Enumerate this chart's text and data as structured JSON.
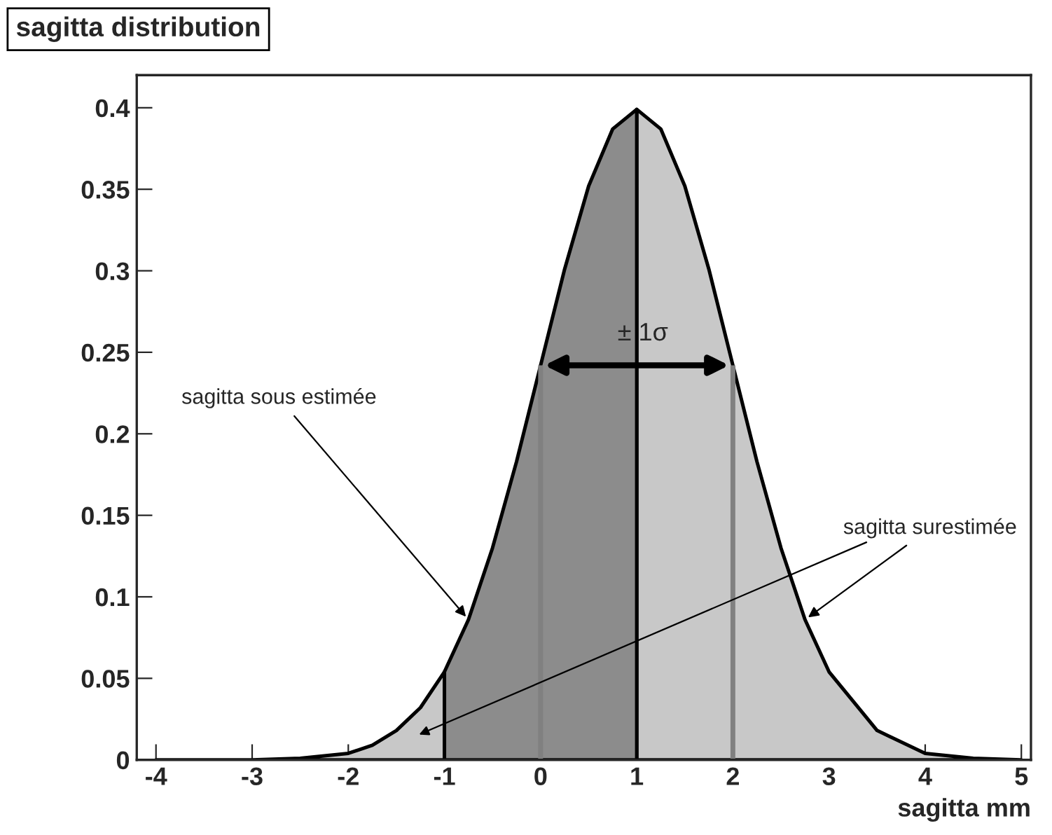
{
  "chart_data": {
    "type": "area",
    "title": "sagitta distribution",
    "xlabel": "sagitta mm",
    "x": [
      -4,
      -3.5,
      -3,
      -2.5,
      -2,
      -1.75,
      -1.5,
      -1.25,
      -1,
      -0.75,
      -0.5,
      -0.25,
      0,
      0.25,
      0.5,
      0.75,
      1,
      1.25,
      1.5,
      1.75,
      2,
      2.25,
      2.5,
      2.75,
      3,
      3.5,
      4,
      4.5,
      5
    ],
    "series": [
      {
        "color": "#c8c8c8",
        "values": [
          0.0,
          0.0,
          0.0,
          0.001,
          0.004,
          0.009,
          0.018,
          0.032,
          0.054,
          null,
          null,
          null,
          null,
          null,
          null,
          null,
          0.399,
          0.387,
          0.352,
          0.301,
          0.242,
          0.183,
          0.13,
          0.086,
          0.054,
          0.018,
          0.004,
          0.001,
          0.0
        ]
      },
      {
        "color": "#8c8c8c",
        "values": [
          null,
          null,
          null,
          null,
          null,
          null,
          null,
          null,
          0.054,
          0.086,
          0.13,
          0.183,
          0.242,
          0.301,
          0.352,
          0.387,
          0.399,
          null,
          null,
          null,
          null,
          null,
          null,
          null,
          null,
          null,
          null,
          null,
          null
        ]
      }
    ],
    "xlim": [
      -4.2,
      5.1
    ],
    "ylim": [
      0,
      0.42
    ],
    "xticks": [
      -4,
      -3,
      -2,
      -1,
      0,
      1,
      2,
      3,
      4,
      5
    ],
    "yticks": [
      0,
      0.05,
      0.1,
      0.15,
      0.2,
      0.25,
      0.3,
      0.35,
      0.4
    ],
    "ref_lines": [
      {
        "axis": "x",
        "value": 0,
        "color": "#808080"
      },
      {
        "axis": "x",
        "value": 2,
        "color": "#808080"
      }
    ],
    "annotations": [
      {
        "text": "± 1σ",
        "x": 1,
        "y": 0.242
      },
      {
        "text": "sagitta sous estimée",
        "x": -0.75,
        "y": 0.086
      },
      {
        "text": "sagitta surestimée",
        "x": 2.75,
        "y": 0.086
      }
    ],
    "grid": false
  }
}
